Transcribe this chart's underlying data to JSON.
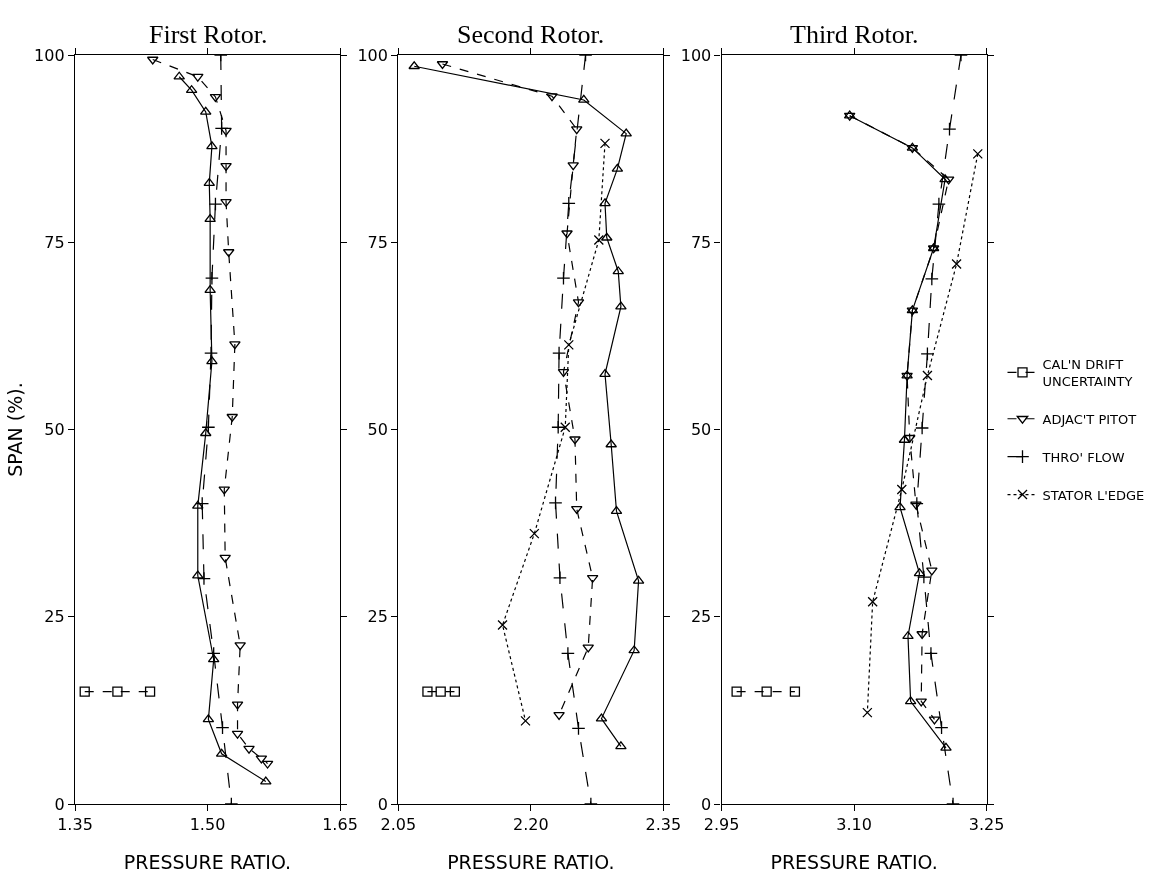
{
  "chart_data": [
    {
      "type": "line",
      "title": "First Rotor.",
      "xlabel": "PRESSURE RATIO.",
      "ylabel": "SPAN (%).",
      "xlim": [
        1.35,
        1.65
      ],
      "xticks": [
        1.35,
        {
          "value": 1.5,
          "label": "1.50"
        },
        1.65
      ],
      "ylim": [
        0,
        100
      ],
      "yticks": [
        0,
        25,
        50,
        75,
        100
      ],
      "series": [
        {
          "color": "#000000",
          "marker": "triangle",
          "line_style": "solid",
          "x": [
            1.468,
            1.482,
            1.498,
            1.505,
            1.502,
            1.503,
            1.503,
            1.505,
            1.498,
            1.489,
            1.489,
            1.507,
            1.501,
            1.516,
            1.566
          ],
          "values": [
            97.1,
            95.3,
            92.4,
            87.8,
            82.9,
            78.1,
            68.6,
            59.1,
            49.5,
            39.8,
            30.5,
            19.3,
            11.3,
            6.7,
            3.0
          ]
        },
        {
          "color": "#000000",
          "marker": "square",
          "line_style": "dashed",
          "x": [
            1.361,
            1.398,
            1.435
          ],
          "values": [
            15,
            15,
            15
          ]
        },
        {
          "color": "#000000",
          "marker": "triangle-down",
          "line_style": "dashed",
          "x": [
            1.438,
            1.489,
            1.509,
            1.521,
            1.521,
            1.521,
            1.524,
            1.531,
            1.528,
            1.519,
            1.52,
            1.537,
            1.534,
            1.534,
            1.547,
            1.561,
            1.568
          ],
          "values": [
            99.4,
            97.1,
            94.4,
            89.9,
            85.2,
            80.4,
            73.7,
            61.4,
            51.7,
            42.0,
            32.9,
            21.2,
            13.3,
            9.4,
            7.4,
            6.1,
            5.4
          ]
        },
        {
          "color": "#000000",
          "marker": "cross",
          "line_style": "longdash",
          "x": [
            1.515,
            1.516,
            1.509,
            1.505,
            1.504,
            1.501,
            1.494,
            1.496,
            1.507,
            1.517,
            1.527
          ],
          "values": [
            100,
            90.2,
            80.1,
            70.2,
            60.2,
            50.3,
            40.1,
            30.1,
            20.1,
            10.2,
            0
          ]
        }
      ]
    },
    {
      "type": "line",
      "title": "Second Rotor.",
      "xlabel": "PRESSURE RATIO.",
      "xlim": [
        2.05,
        2.35
      ],
      "xticks": [
        {
          "value": 2.05,
          "label": "2.05"
        },
        {
          "value": 2.2,
          "label": "2.20"
        },
        2.35
      ],
      "ylim": [
        0,
        100
      ],
      "yticks": [
        0,
        25,
        50,
        75,
        100
      ],
      "series": [
        {
          "color": "#000000",
          "marker": "triangle",
          "line_style": "solid",
          "x": [
            2.068,
            2.26,
            2.308,
            2.298,
            2.284,
            2.286,
            2.299,
            2.302,
            2.284,
            2.291,
            2.297,
            2.322,
            2.317,
            2.28,
            2.302
          ],
          "values": [
            98.5,
            94.0,
            89.5,
            84.8,
            80.2,
            75.6,
            71.1,
            66.4,
            57.4,
            48.0,
            39.1,
            29.8,
            20.5,
            11.4,
            7.7
          ]
        },
        {
          "color": "#000000",
          "marker": "square",
          "line_style": "dashed",
          "x": [
            2.083,
            2.098,
            2.114
          ],
          "values": [
            15,
            15,
            15
          ]
        },
        {
          "color": "#000000",
          "marker": "triangle-down",
          "line_style": "dashed",
          "x": [
            2.1,
            2.224,
            2.252,
            2.248,
            2.241,
            2.254,
            2.237,
            2.25,
            2.252,
            2.27,
            2.265,
            2.232
          ],
          "values": [
            98.8,
            94.5,
            90.1,
            85.3,
            76.2,
            67.0,
            57.7,
            48.7,
            39.4,
            30.2,
            20.9,
            11.9
          ]
        },
        {
          "color": "#000000",
          "marker": "cross",
          "line_style": "longdash",
          "x": [
            2.262,
            2.243,
            2.237,
            2.232,
            2.231,
            2.228,
            2.233,
            2.242,
            2.254,
            2.268
          ],
          "values": [
            100,
            80.2,
            70.2,
            60.2,
            50.3,
            40.2,
            30.2,
            20.1,
            10.1,
            0
          ]
        },
        {
          "color": "#000000",
          "marker": "x",
          "line_style": "dotted",
          "x": [
            2.284,
            2.277,
            2.243,
            2.239,
            2.204,
            2.168,
            2.194
          ],
          "values": [
            88.2,
            75.3,
            61.3,
            50.3,
            36.1,
            23.9,
            11.1
          ]
        }
      ]
    },
    {
      "type": "line",
      "title": "Third Rotor.",
      "xlabel": "PRESSURE RATIO.",
      "legend": "right",
      "xlim": [
        2.95,
        3.25
      ],
      "xticks": [
        2.95,
        {
          "value": 3.1,
          "label": "3.10"
        },
        3.25
      ],
      "ylim": [
        0,
        100
      ],
      "yticks": [
        0,
        25,
        50,
        75,
        100
      ],
      "series": [
        {
          "color": "#000000",
          "marker": "triangle",
          "line_style": "solid",
          "x": [
            3.095,
            3.166,
            3.203,
            3.19,
            3.166,
            3.16,
            3.157,
            3.152,
            3.174,
            3.161,
            3.164,
            3.204
          ],
          "values": [
            91.9,
            87.6,
            83.4,
            74.2,
            65.9,
            57.2,
            48.6,
            39.6,
            30.8,
            22.4,
            13.7,
            7.5
          ]
        },
        {
          "name": "CAL'N DRIFT\nUNCERTAINTY",
          "color": "#000000",
          "marker": "square",
          "line_style": "dashed",
          "x": [
            2.967,
            3.001,
            3.033
          ],
          "values": [
            15,
            15,
            15
          ]
        },
        {
          "name": "ADJAC'T PITOT",
          "color": "#000000",
          "marker": "triangle-down",
          "line_style": "dashed",
          "x": [
            3.095,
            3.166,
            3.207,
            3.19,
            3.166,
            3.16,
            3.163,
            3.17,
            3.188,
            3.177,
            3.176,
            3.191
          ],
          "values": [
            91.9,
            87.6,
            83.4,
            74.2,
            65.9,
            57.2,
            48.9,
            40.0,
            31.2,
            22.7,
            13.7,
            11.3
          ]
        },
        {
          "name": "THRO' FLOW",
          "color": "#000000",
          "marker": "cross",
          "line_style": "longdash",
          "x": [
            3.221,
            3.208,
            3.196,
            3.188,
            3.183,
            3.177,
            3.171,
            3.179,
            3.187,
            3.199,
            3.212
          ],
          "values": [
            100,
            90.1,
            80.1,
            70.1,
            60.1,
            50.2,
            40.1,
            30.3,
            20.1,
            10.2,
            0
          ]
        },
        {
          "name": "STATOR L'EDGE",
          "color": "#000000",
          "marker": "x",
          "line_style": "dotted",
          "x": [
            3.24,
            3.216,
            3.183,
            3.154,
            3.121,
            3.115
          ],
          "values": [
            86.8,
            72.1,
            57.2,
            42.0,
            27.0,
            12.2
          ]
        }
      ]
    }
  ]
}
